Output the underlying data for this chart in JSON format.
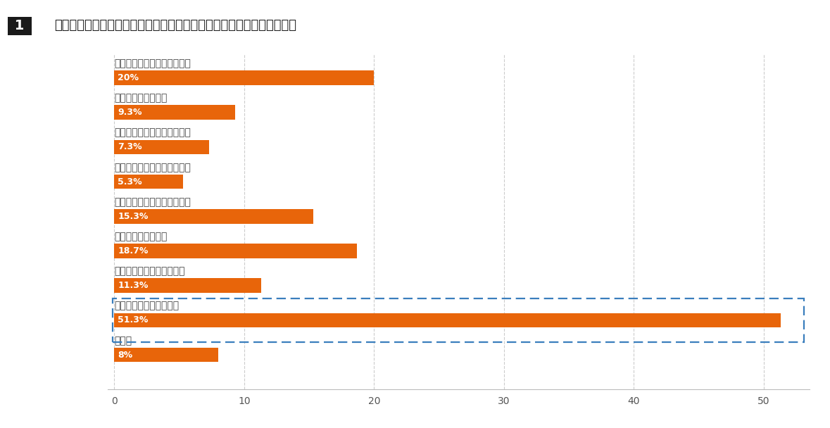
{
  "title": "地方移住を始めたいタイミングはどのような時ですか。　（複数回答）",
  "title_number": "1",
  "categories": [
    "一人暮らしをするタイミング",
    "結婚するタイミング",
    "子どもが生まれるタイミング",
    "子どもが進学するタイミング",
    "子どもが独立するタイミング",
    "転職するタイミング",
    "独立・開業するタイミング",
    "定年退職するタイミング",
    "その他"
  ],
  "values": [
    20.0,
    9.3,
    7.3,
    5.3,
    15.3,
    18.7,
    11.3,
    51.3,
    8.0
  ],
  "labels": [
    "20%",
    "9.3%",
    "7.3%",
    "5.3%",
    "15.3%",
    "18.7%",
    "11.3%",
    "51.3%",
    "8%"
  ],
  "bar_color": "#E8650A",
  "highlight_index": 7,
  "highlight_box_color": "#3A7EBD",
  "xlim_max": 53,
  "xticks": [
    0,
    10,
    20,
    30,
    40,
    50
  ],
  "background_color": "#FFFFFF",
  "grid_color": "#CCCCCC",
  "title_bg_color": "#1A1A1A",
  "label_fontsize": 10,
  "bar_label_fontsize": 9,
  "title_fontsize": 13,
  "cat_text_color": "#444444",
  "axis_text_color": "#555555"
}
